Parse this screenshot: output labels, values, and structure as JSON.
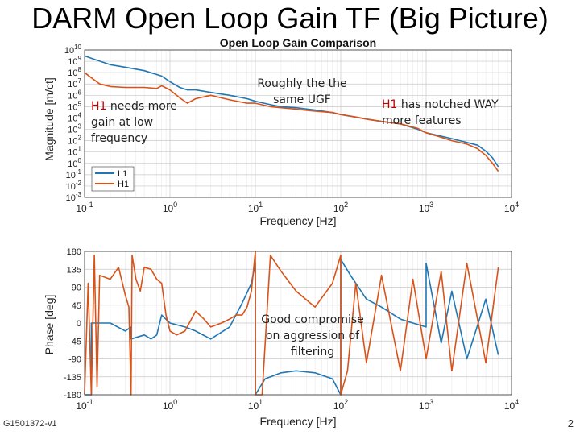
{
  "slide": {
    "title": "DARM Open Loop Gain TF (Big Picture)",
    "footer_id": "G1501372-v1",
    "page_number": "2"
  },
  "annotations": {
    "a1_red": "H1",
    "a1_line1": " needs more",
    "a1_line2": "gain at low",
    "a1_line3": "frequency",
    "a2_line1": "Roughly the the",
    "a2_line2": "same UGF",
    "a3_red": "H1",
    "a3_line1": " has notched WAY",
    "a3_line2": "more features",
    "a4_line1": "Good compromise",
    "a4_line2": "on aggression of",
    "a4_line3": "filtering"
  },
  "colors": {
    "L1": "#1f77b4",
    "H1": "#d95319"
  },
  "chart_data": [
    {
      "type": "line",
      "title": "Open Loop Gain Comparison",
      "xlabel": "Frequency [Hz]",
      "ylabel": "Magnitude [m/ct]",
      "xscale": "log",
      "yscale": "log",
      "xlim": [
        0.1,
        10000
      ],
      "ylim": [
        0.001,
        10000000000.0
      ],
      "grid": true,
      "legend": "bottom-left",
      "x_ticks": [
        {
          "v": 0.1,
          "b": "10",
          "e": "-1"
        },
        {
          "v": 1,
          "b": "10",
          "e": "0"
        },
        {
          "v": 10,
          "b": "10",
          "e": "1"
        },
        {
          "v": 100,
          "b": "10",
          "e": "2"
        },
        {
          "v": 1000,
          "b": "10",
          "e": "3"
        },
        {
          "v": 10000,
          "b": "10",
          "e": "4"
        }
      ],
      "y_ticks": [
        {
          "v": 10000000000.0,
          "b": "10",
          "e": "10"
        },
        {
          "v": 1000000000.0,
          "b": "10",
          "e": "9"
        },
        {
          "v": 100000000.0,
          "b": "10",
          "e": "8"
        },
        {
          "v": 10000000.0,
          "b": "10",
          "e": "7"
        },
        {
          "v": 1000000.0,
          "b": "10",
          "e": "6"
        },
        {
          "v": 100000.0,
          "b": "10",
          "e": "5"
        },
        {
          "v": 10000.0,
          "b": "10",
          "e": "4"
        },
        {
          "v": 1000.0,
          "b": "10",
          "e": "3"
        },
        {
          "v": 100,
          "b": "10",
          "e": "2"
        },
        {
          "v": 10,
          "b": "10",
          "e": "1"
        },
        {
          "v": 1,
          "b": "10",
          "e": "0"
        },
        {
          "v": 0.1,
          "b": "10",
          "e": "-1"
        },
        {
          "v": 0.01,
          "b": "10",
          "e": "-2"
        },
        {
          "v": 0.001,
          "b": "10",
          "e": "-3"
        }
      ],
      "series": [
        {
          "name": "L1",
          "color": "#1f77b4",
          "x": [
            0.1,
            0.13,
            0.2,
            0.3,
            0.5,
            0.8,
            1,
            1.3,
            1.6,
            2,
            3,
            5,
            8,
            10,
            15,
            20,
            30,
            50,
            80,
            100,
            150,
            200,
            300,
            500,
            800,
            1000,
            1500,
            2000,
            3000,
            4000,
            5000,
            6000,
            7000
          ],
          "y": [
            3000000000.0,
            1500000000.0,
            500000000.0,
            300000000.0,
            150000000.0,
            50000000.0,
            16000000.0,
            5000000.0,
            3000000.0,
            3000000.0,
            1800000.0,
            1000000.0,
            500000.0,
            300000.0,
            150000.0,
            100000.0,
            80000.0,
            50000.0,
            30000.0,
            20000.0,
            12000.0,
            8000.0,
            5000.0,
            3000.0,
            1000.0,
            500,
            250,
            150,
            70,
            40,
            12,
            3,
            0.5
          ]
        },
        {
          "name": "H1",
          "color": "#d95319",
          "x": [
            0.1,
            0.15,
            0.2,
            0.3,
            0.5,
            0.7,
            0.8,
            1,
            1.3,
            1.6,
            2,
            3,
            5,
            8,
            10,
            15,
            20,
            30,
            50,
            80,
            100,
            150,
            200,
            300,
            500,
            800,
            1000,
            1500,
            2000,
            3000,
            4000,
            5000,
            6000,
            7000
          ],
          "y": [
            100000000.0,
            10000000.0,
            6000000.0,
            5000000.0,
            5000000.0,
            4000000.0,
            7000000.0,
            3000000.0,
            600000.0,
            200000.0,
            500000.0,
            1000000.0,
            400000.0,
            200000.0,
            200000.0,
            100000.0,
            80000.0,
            60000.0,
            40000.0,
            30000.0,
            20000.0,
            12000.0,
            8000.0,
            5000.0,
            3000.0,
            1200.0,
            500,
            200,
            100,
            50,
            20,
            5,
            1,
            0.2
          ]
        }
      ],
      "legend_entries": [
        "L1",
        "H1"
      ]
    },
    {
      "type": "line",
      "xlabel": "Frequency [Hz]",
      "ylabel": "Phase [deg]",
      "xscale": "log",
      "xlim": [
        0.1,
        10000
      ],
      "ylim": [
        -180,
        180
      ],
      "grid": true,
      "x_ticks": [
        {
          "v": 0.1,
          "b": "10",
          "e": "-1"
        },
        {
          "v": 1,
          "b": "10",
          "e": "0"
        },
        {
          "v": 10,
          "b": "10",
          "e": "1"
        },
        {
          "v": 100,
          "b": "10",
          "e": "2"
        },
        {
          "v": 1000,
          "b": "10",
          "e": "3"
        },
        {
          "v": 10000,
          "b": "10",
          "e": "4"
        }
      ],
      "y_ticks": [
        180,
        135,
        90,
        45,
        0,
        -45,
        -90,
        -135,
        -180
      ],
      "series": [
        {
          "name": "L1",
          "color": "#1f77b4",
          "x": [
            0.1,
            0.12,
            0.12,
            0.2,
            0.3,
            0.35,
            0.35,
            0.5,
            0.6,
            0.7,
            0.8,
            1,
            1.5,
            2,
            3,
            5,
            7,
            9,
            10,
            10,
            13,
            20,
            30,
            50,
            80,
            100,
            100,
            130,
            200,
            300,
            500,
            700,
            1000,
            1000,
            1500,
            2000,
            3000,
            5000,
            7000
          ],
          "y": [
            -180,
            -180,
            0,
            0,
            -20,
            -10,
            -40,
            -30,
            -40,
            -30,
            20,
            0,
            -10,
            -20,
            -40,
            -10,
            50,
            100,
            150,
            -180,
            -140,
            -125,
            -120,
            -125,
            -140,
            -180,
            160,
            120,
            60,
            40,
            10,
            0,
            -10,
            150,
            -50,
            80,
            -90,
            60,
            -80
          ]
        },
        {
          "name": "H1",
          "color": "#d95319",
          "x": [
            0.1,
            0.11,
            0.12,
            0.13,
            0.14,
            0.15,
            0.2,
            0.25,
            0.3,
            0.33,
            0.35,
            0.36,
            0.4,
            0.45,
            0.5,
            0.6,
            0.7,
            0.8,
            0.9,
            1,
            1.2,
            1.5,
            2,
            2.5,
            3,
            4,
            5,
            6,
            7,
            8,
            9,
            10,
            10,
            12,
            15,
            20,
            30,
            50,
            80,
            100,
            100,
            120,
            150,
            200,
            300,
            500,
            700,
            1000,
            1500,
            2000,
            3000,
            5000,
            7000
          ],
          "y": [
            -180,
            100,
            -180,
            170,
            -160,
            120,
            110,
            140,
            70,
            40,
            -180,
            170,
            110,
            80,
            140,
            135,
            110,
            100,
            20,
            -20,
            -30,
            -20,
            30,
            10,
            -10,
            0,
            10,
            20,
            20,
            40,
            80,
            180,
            -180,
            -180,
            170,
            130,
            80,
            40,
            100,
            170,
            -180,
            -120,
            100,
            -100,
            120,
            -120,
            110,
            -90,
            130,
            -120,
            150,
            -100,
            140
          ]
        }
      ]
    }
  ]
}
